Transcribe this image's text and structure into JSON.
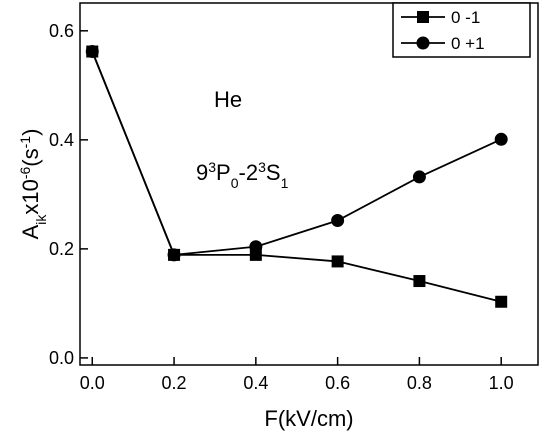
{
  "chart_data": {
    "type": "line",
    "x": [
      0.0,
      0.2,
      0.4,
      0.6,
      0.8,
      1.0
    ],
    "series": [
      {
        "name": "0 -1",
        "color": "#000000",
        "marker": "square",
        "values": [
          0.562,
          0.189,
          0.189,
          0.177,
          0.141,
          0.103
        ]
      },
      {
        "name": "0 +1",
        "color": "#000000",
        "marker": "circle",
        "values": [
          0.562,
          0.189,
          0.204,
          0.252,
          0.332,
          0.401
        ]
      }
    ],
    "xlim": [
      -0.03,
      1.09
    ],
    "ylim": [
      -0.013,
      0.651
    ],
    "xticks": [
      {
        "value": 0,
        "label": "0.0"
      },
      0.2,
      0.4,
      0.6,
      0.8,
      {
        "value": 1,
        "label": "1.0"
      }
    ],
    "yticks": [
      {
        "value": 0,
        "label": "0.0"
      },
      0.2,
      0.4,
      0.6
    ],
    "xlabel": "F(kV/cm)",
    "ylabel": [
      {
        "text": "A"
      },
      {
        "text": "ik",
        "shift": "sub"
      },
      {
        "text": "x10"
      },
      {
        "text": "-6",
        "shift": "sup"
      },
      {
        "text": "(s"
      },
      {
        "text": "-1",
        "shift": "sup"
      },
      {
        "text": ")"
      }
    ],
    "annotations": [
      [
        {
          "text": "He"
        }
      ],
      [
        {
          "text": "9"
        },
        {
          "text": "3",
          "shift": "sup"
        },
        {
          "text": "P"
        },
        {
          "text": "0",
          "shift": "sub"
        },
        {
          "text": "-2"
        },
        {
          "text": "3",
          "shift": "sup"
        },
        {
          "text": "S"
        },
        {
          "text": "1",
          "shift": "sub"
        }
      ]
    ],
    "legend": "upper right"
  }
}
